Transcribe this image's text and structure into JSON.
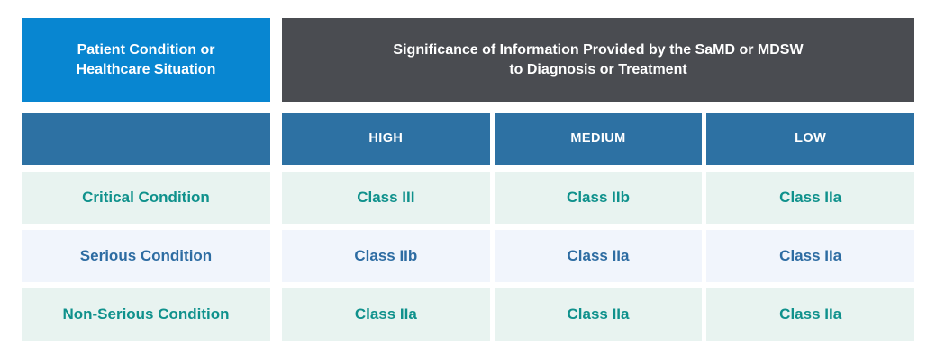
{
  "colors": {
    "brand-blue": "#0886d1",
    "header-gray": "#4a4c51",
    "steel-blue": "#2d71a3",
    "teal-text": "#0f918c",
    "blue-text": "#2d6ca2",
    "mint-bg": "#e8f3f0",
    "pale-blue-bg": "#f1f5fc"
  },
  "chart_data": {
    "type": "table",
    "corner_header": "Patient Condition or Healthcare Situation",
    "corner_header_lines": [
      "Patient Condition or",
      "Healthcare Situation"
    ],
    "group_header": "Significance of Information Provided by the SaMD or MDSW to Diagnosis or Treatment",
    "group_header_lines": [
      "Significance of Information Provided by the SaMD or MDSW",
      "to Diagnosis or Treatment"
    ],
    "columns": [
      "HIGH",
      "MEDIUM",
      "LOW"
    ],
    "rows": [
      {
        "label": "Critical Condition",
        "values": [
          "Class III",
          "Class IIb",
          "Class IIa"
        ],
        "theme": "teal"
      },
      {
        "label": "Serious Condition",
        "values": [
          "Class IIb",
          "Class IIa",
          "Class IIa"
        ],
        "theme": "blue"
      },
      {
        "label": "Non-Serious Condition",
        "values": [
          "Class IIa",
          "Class IIa",
          "Class IIa"
        ],
        "theme": "teal"
      }
    ]
  }
}
